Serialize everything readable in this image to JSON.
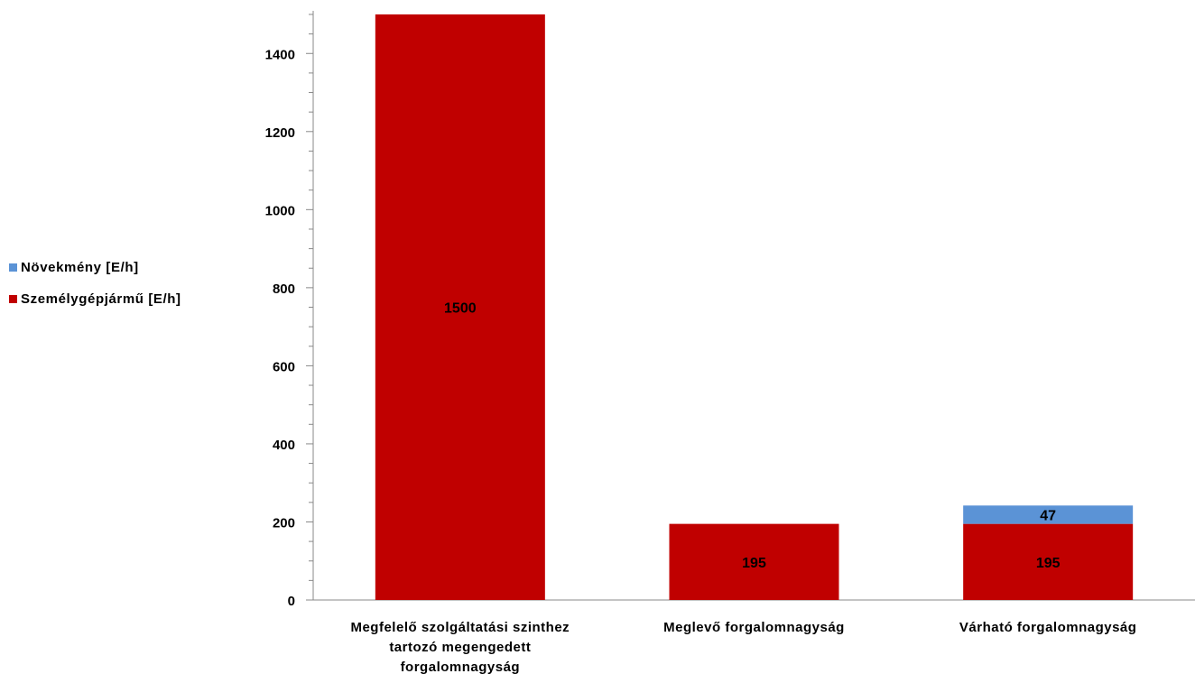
{
  "chart_data": {
    "type": "bar",
    "stacked": true,
    "categories": [
      [
        "Megfelelő szolgáltatási szinthez",
        "tartozó megengedett",
        "forgalomnagyság"
      ],
      [
        "Meglevő forgalomnagyság"
      ],
      [
        "Várható forgalomnagyság"
      ]
    ],
    "series": [
      {
        "name": "Személygépjármű [E/h]",
        "color": "#c00000",
        "values": [
          1500,
          195,
          195
        ]
      },
      {
        "name": "Növekmény [E/h]",
        "color": "#5b93d6",
        "values": [
          0,
          0,
          47
        ]
      }
    ],
    "ylim": [
      0,
      1500
    ],
    "yticks": [
      0,
      200,
      400,
      600,
      800,
      1000,
      1200,
      1400
    ],
    "data_labels": true,
    "legend_position": "left",
    "grid": false
  }
}
